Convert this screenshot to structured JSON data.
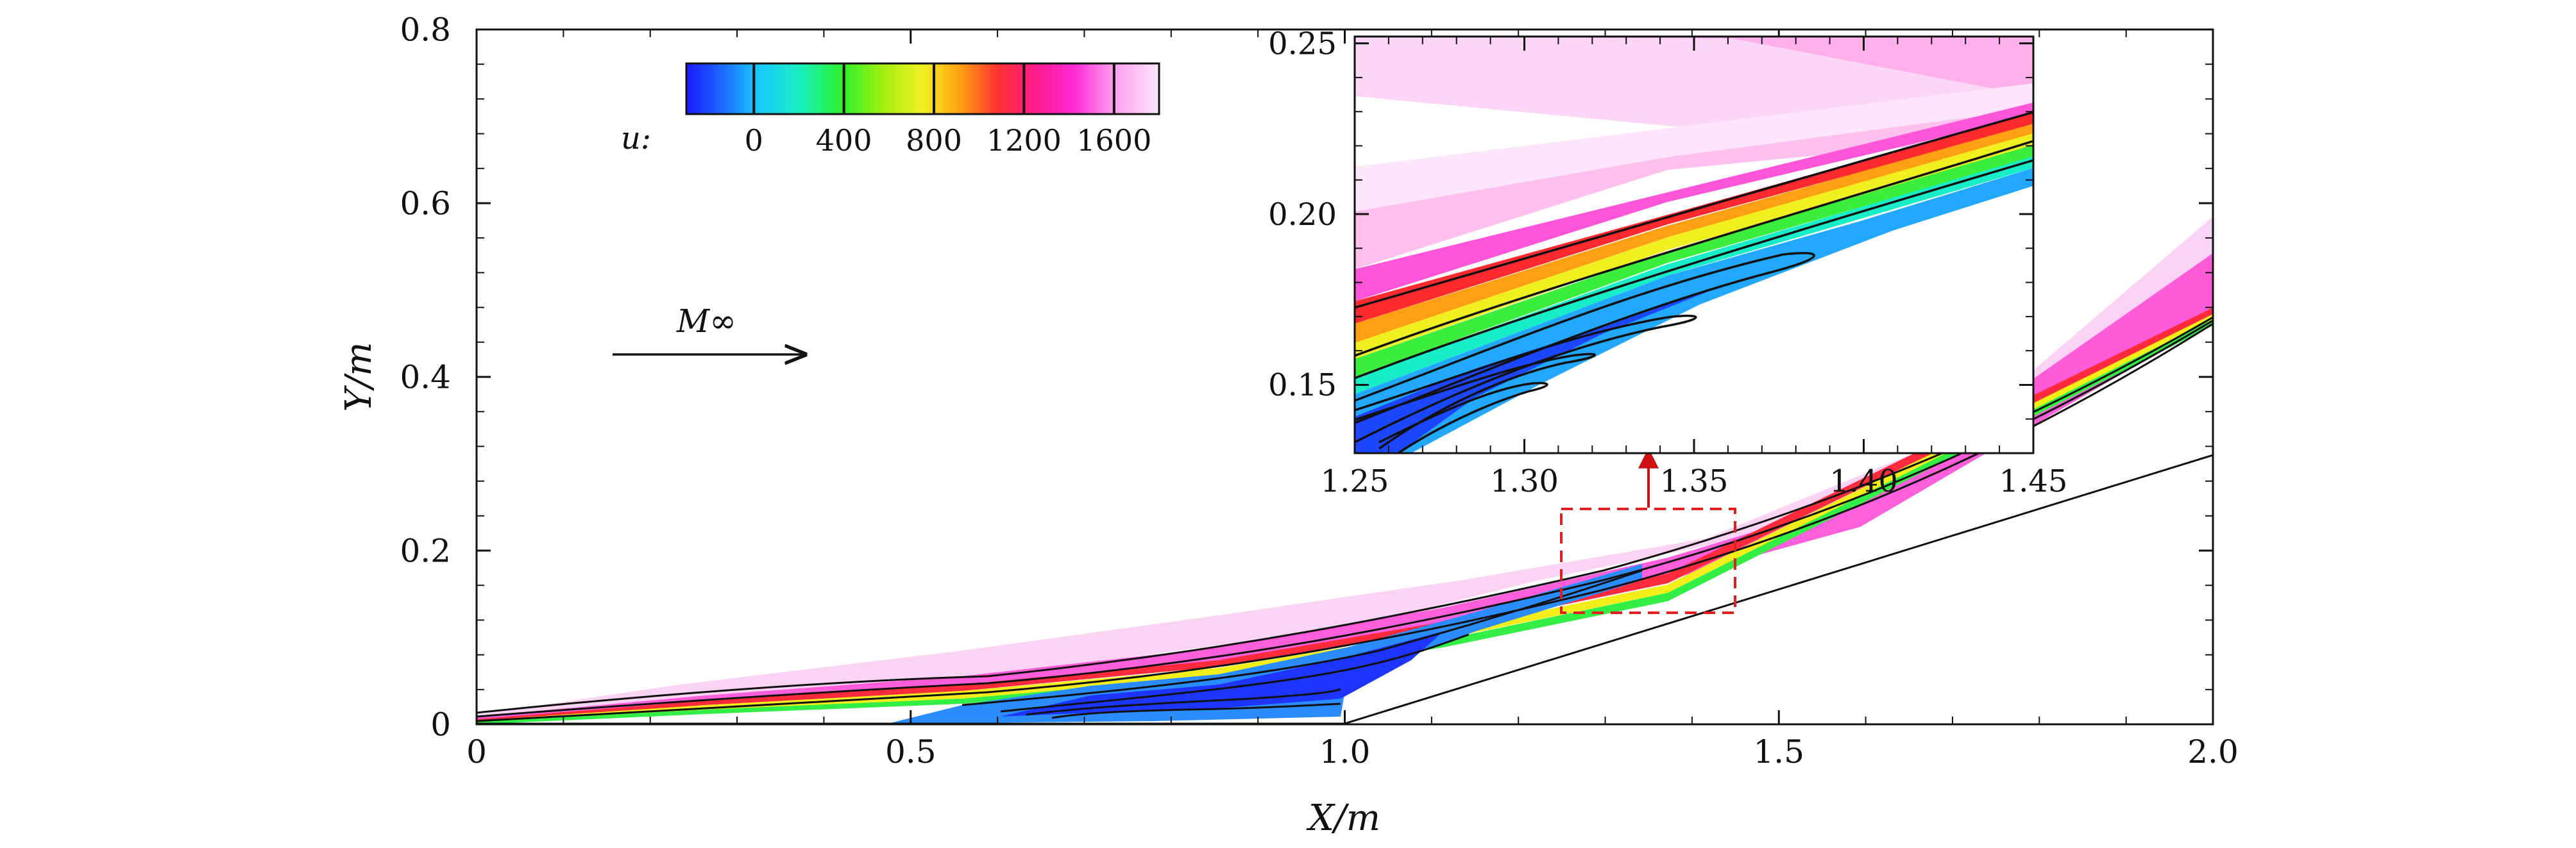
{
  "chart_data": [
    {
      "type": "heatmap",
      "title": "",
      "description_panel": "main",
      "xlabel": "X/m",
      "ylabel": "Y/m",
      "xlim": [
        0,
        2.0
      ],
      "ylim": [
        0,
        0.8
      ],
      "xticks": [
        {
          "value": 0,
          "label": "0"
        },
        {
          "value": 0.5,
          "label": "0.5"
        },
        {
          "value": 1.0,
          "label": "1.0"
        },
        {
          "value": 1.5,
          "label": "1.5"
        },
        {
          "value": 2.0,
          "label": "2.0"
        }
      ],
      "yticks": [
        {
          "value": 0,
          "label": "0"
        },
        {
          "value": 0.2,
          "label": "0.2"
        },
        {
          "value": 0.4,
          "label": "0.4"
        },
        {
          "value": 0.6,
          "label": "0.6"
        },
        {
          "value": 0.8,
          "label": "0.8"
        }
      ],
      "wall": {
        "x": [
          0,
          1.0,
          2.0
        ],
        "y": [
          0,
          0.0,
          0.31
        ]
      },
      "flow_label": "M∞",
      "colorbar": {
        "variable_label": "u:",
        "range": [
          -300,
          1800
        ],
        "ticks": [
          {
            "value": 0,
            "label": "0"
          },
          {
            "value": 400,
            "label": "400"
          },
          {
            "value": 800,
            "label": "800"
          },
          {
            "value": 1200,
            "label": "1200"
          },
          {
            "value": 1600,
            "label": "1600"
          }
        ]
      },
      "zoom_box": {
        "x": [
          1.25,
          1.45
        ],
        "y": [
          0.13,
          0.25
        ]
      }
    },
    {
      "type": "heatmap",
      "description_panel": "inset",
      "xlim": [
        1.25,
        1.45
      ],
      "ylim": [
        0.13,
        0.252
      ],
      "xticks": [
        {
          "value": 1.25,
          "label": "1.25"
        },
        {
          "value": 1.3,
          "label": "1.30"
        },
        {
          "value": 1.35,
          "label": "1.35"
        },
        {
          "value": 1.4,
          "label": "1.40"
        },
        {
          "value": 1.45,
          "label": "1.45"
        }
      ],
      "yticks": [
        {
          "value": 0.15,
          "label": "0.15"
        },
        {
          "value": 0.2,
          "label": "0.20"
        },
        {
          "value": 0.25,
          "label": "0.25"
        }
      ]
    }
  ],
  "colors": {
    "colormap": [
      "#1a1aff",
      "#1e6dff",
      "#17c8ff",
      "#17f0c0",
      "#2cf02c",
      "#a8f010",
      "#f0f020",
      "#ffa014",
      "#ff3030",
      "#ff1a8c",
      "#ff2ad4",
      "#ff99ee",
      "#fde6fb"
    ],
    "zoom_box": "#e02020",
    "arrow": "#cc1010"
  }
}
